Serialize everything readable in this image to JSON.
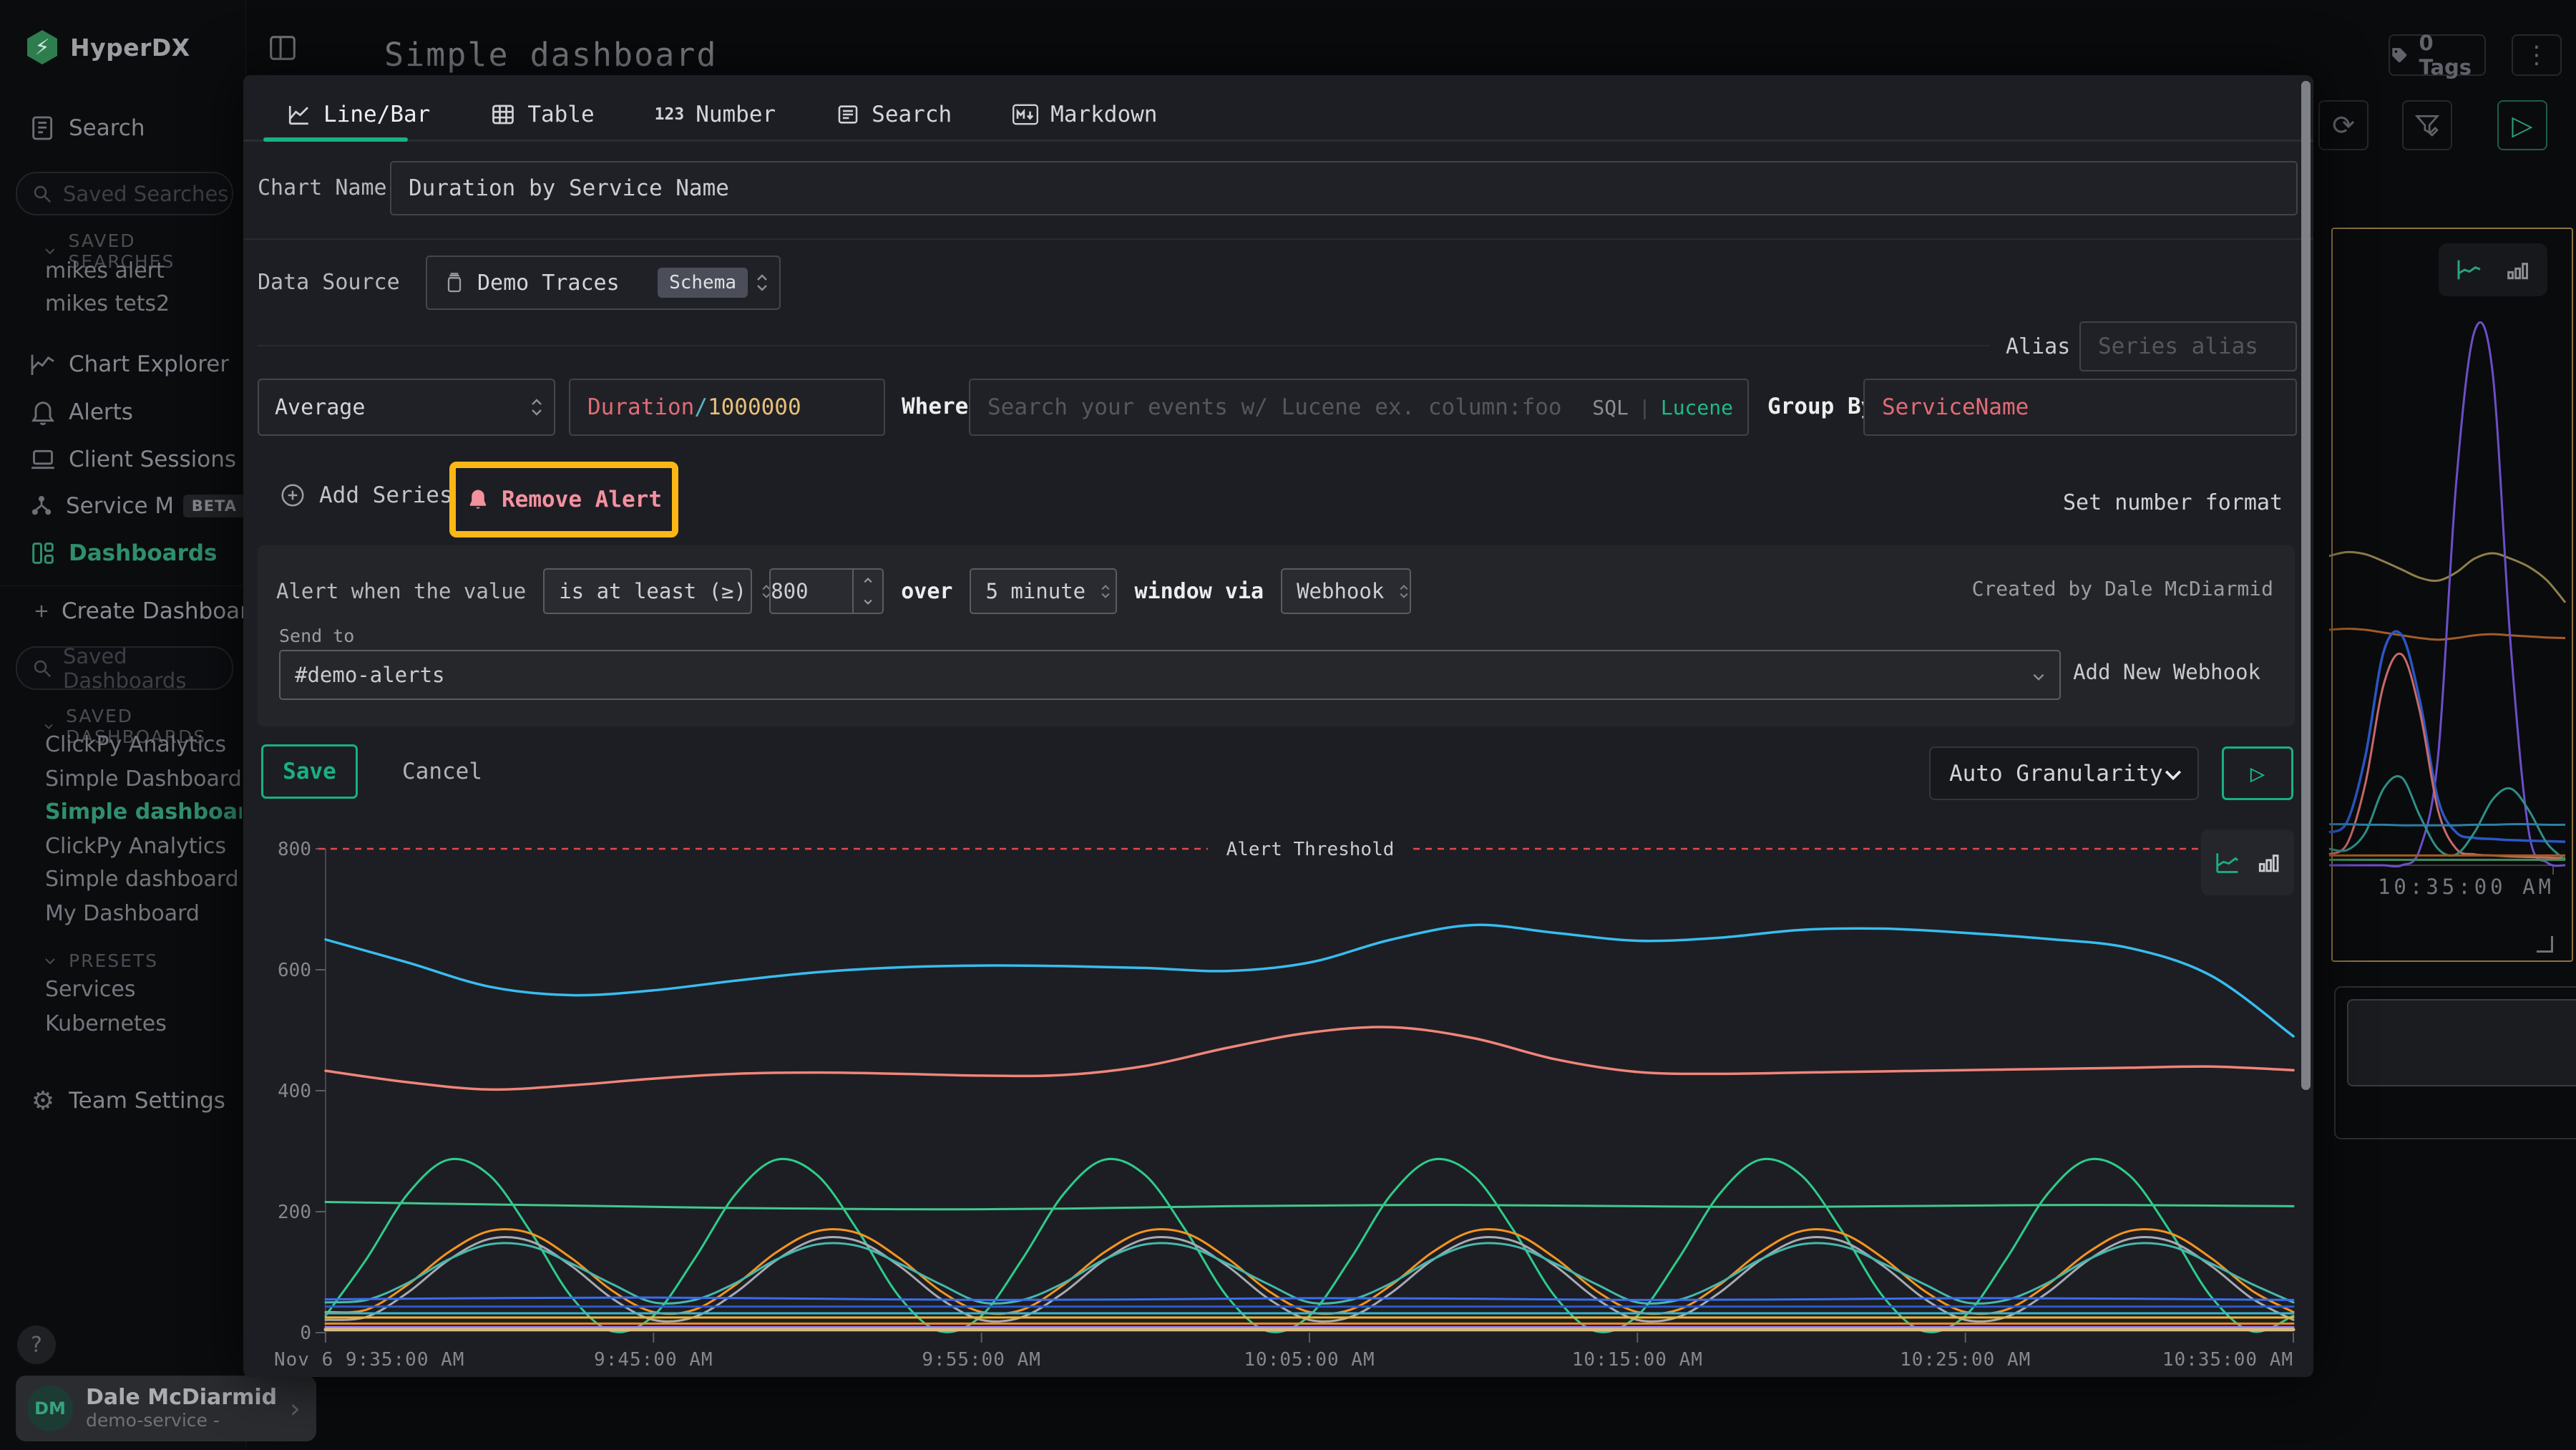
{
  "colors": {
    "accent_green": "#17b182",
    "alert_pink": "#f4919f",
    "threshold_red": "#e5484d",
    "annotation_yellow": "#fcb714",
    "code_field": "#e06c75",
    "code_operator": "#56b6c2",
    "code_number": "#e5c07b",
    "lucene_green": "#1fb987"
  },
  "header": {
    "title": "Simple dashboard",
    "tags": "0 Tags"
  },
  "sidebar": {
    "logo": "HyperDX",
    "search_label": "Search",
    "search_placeholder": "Saved Searches",
    "saved_searches_header": "SAVED SEARCHES",
    "saved_searches": [
      "mikes alert",
      "mikes tets2"
    ],
    "nav": [
      {
        "label": "Chart Explorer"
      },
      {
        "label": "Alerts"
      },
      {
        "label": "Client Sessions"
      },
      {
        "label": "Service Map",
        "badge": "BETA"
      },
      {
        "label": "Dashboards"
      }
    ],
    "create_dashboard": "Create Dashboard",
    "dash_search_placeholder": "Saved Dashboards",
    "saved_dashboards_header": "SAVED DASHBOARDS",
    "saved_dashboards": [
      {
        "label": "ClickPy Analytics"
      },
      {
        "label": "Simple Dashboard"
      },
      {
        "label": "Simple dashboard"
      },
      {
        "label": "ClickPy Analytics"
      },
      {
        "label": "Simple dashboard"
      },
      {
        "label": "My Dashboard"
      }
    ],
    "presets_header": "PRESETS",
    "presets": [
      "Services",
      "Kubernetes"
    ],
    "team_settings": "Team Settings"
  },
  "user": {
    "help": "?",
    "initials": "DM",
    "name": "Dale McDiarmid",
    "org": "demo-service -"
  },
  "modal": {
    "tabs": [
      {
        "label": "Line/Bar"
      },
      {
        "label": "Table"
      },
      {
        "label": "Number"
      },
      {
        "label": "Search"
      },
      {
        "label": "Markdown"
      }
    ],
    "number_icon": "123",
    "chart_name": {
      "label": "Chart Name",
      "value": "Duration by Service Name"
    },
    "data_source": {
      "label": "Data Source",
      "value": "Demo Traces",
      "badge": "Schema"
    },
    "alias": {
      "label": "Alias",
      "placeholder": "Series alias"
    },
    "series_editor": {
      "aggregation": "Average",
      "field_parts": [
        {
          "text": "Duration"
        },
        {
          "text": "/"
        },
        {
          "text": "1000000"
        }
      ],
      "where_label": "Where",
      "where_placeholder": "Search your events w/ Lucene ex. column:foo",
      "sql_label": "SQL",
      "sep": "|",
      "lucene_label": "Lucene",
      "group_by_label": "Group By",
      "group_by_value": "ServiceName"
    },
    "actions": {
      "add_series": "Add Series",
      "remove_alert": "Remove Alert",
      "set_number_format": "Set number format"
    },
    "alert": {
      "prefix": "Alert when the value",
      "condition": "is at least (≥)",
      "threshold": "800",
      "over": "over",
      "window": "5 minute",
      "via": "window via",
      "channel": "Webhook",
      "created_by": "Created by Dale McDiarmid",
      "send_to_label": "Send to",
      "send_to_value": "#demo-alerts",
      "add_webhook": "Add New Webhook"
    },
    "footer": {
      "save": "Save",
      "cancel": "Cancel",
      "granularity": "Auto Granularity"
    }
  },
  "chart_data": [
    {
      "type": "line",
      "title": "Duration by Service Name",
      "x_ticks": [
        "Nov 6 9:35:00 AM",
        "9:45:00 AM",
        "9:55:00 AM",
        "10:05:00 AM",
        "10:15:00 AM",
        "10:25:00 AM",
        "10:35:00 AM"
      ],
      "x_tick_minutes": [
        0,
        10,
        20,
        30,
        40,
        50,
        60
      ],
      "x_range_minutes": [
        0,
        60
      ],
      "ylim": [
        0,
        800
      ],
      "y_ticks": [
        0,
        200,
        400,
        600,
        800
      ],
      "grid": false,
      "legend": false,
      "threshold": {
        "value": 800,
        "label": "Alert Threshold",
        "color": "#e5484d"
      },
      "series": [
        {
          "id": "line-cyan",
          "color": "#38bdf0",
          "width": 3.5,
          "step": 2.5,
          "values": [
            650,
            612,
            572,
            558,
            566,
            582,
            596,
            604,
            607,
            606,
            603,
            598,
            612,
            650,
            674,
            661,
            648,
            653,
            666,
            668,
            661,
            651,
            636,
            590,
            490
          ]
        },
        {
          "id": "line-salmon",
          "color": "#f0857a",
          "width": 3.5,
          "step": 2.5,
          "values": [
            433,
            414,
            402,
            409,
            420,
            428,
            430,
            428,
            425,
            426,
            441,
            471,
            496,
            505,
            487,
            452,
            431,
            428,
            430,
            432,
            434,
            436,
            438,
            440,
            434
          ]
        },
        {
          "id": "line-mint",
          "color": "#41c98e",
          "width": 3,
          "step": 2.5,
          "values": [
            216,
            214,
            212,
            210,
            208,
            206,
            205,
            204,
            204,
            205,
            207,
            209,
            210,
            211,
            211,
            210,
            209,
            208,
            208,
            209,
            210,
            211,
            211,
            210,
            209
          ]
        },
        {
          "id": "line-green-wave",
          "color": "#2ecc8b",
          "width": 3,
          "step": 1.25,
          "values": [
            28,
            122,
            229,
            286,
            260,
            167,
            59,
            2,
            28,
            122,
            229,
            286,
            260,
            167,
            59,
            2,
            28,
            122,
            229,
            286,
            260,
            167,
            59,
            2,
            28,
            122,
            229,
            286,
            260,
            167,
            59,
            2,
            28,
            122,
            229,
            286,
            260,
            167,
            59,
            2,
            28,
            122,
            229,
            286,
            260,
            167,
            59,
            2,
            28
          ]
        },
        {
          "id": "line-orange-wave",
          "color": "#f5941f",
          "width": 3,
          "step": 1.25,
          "values": [
            34,
            38,
            79,
            133,
            168,
            164,
            123,
            69,
            34,
            38,
            79,
            133,
            168,
            164,
            123,
            69,
            34,
            38,
            79,
            133,
            168,
            164,
            123,
            69,
            34,
            38,
            79,
            133,
            168,
            164,
            123,
            69,
            34,
            38,
            79,
            133,
            168,
            164,
            123,
            69,
            34,
            38,
            79,
            133,
            168,
            164,
            123,
            69,
            34
          ]
        },
        {
          "id": "line-gray-wave",
          "color": "#a6abb3",
          "width": 3,
          "step": 1.25,
          "values": [
            21,
            26,
            66,
            120,
            155,
            151,
            110,
            56,
            21,
            26,
            66,
            120,
            155,
            151,
            110,
            56,
            21,
            26,
            66,
            120,
            155,
            151,
            110,
            56,
            21,
            26,
            66,
            120,
            155,
            151,
            110,
            56,
            21,
            26,
            66,
            120,
            155,
            151,
            110,
            56,
            21,
            26,
            66,
            120,
            155,
            151,
            110,
            56,
            21
          ]
        },
        {
          "id": "line-teal-wave",
          "color": "#46b8ab",
          "width": 3,
          "step": 1.25,
          "values": [
            50,
            54,
            82,
            121,
            146,
            143,
            114,
            80,
            50,
            54,
            82,
            121,
            146,
            143,
            114,
            80,
            50,
            54,
            82,
            121,
            146,
            143,
            114,
            80,
            50,
            54,
            82,
            121,
            146,
            143,
            114,
            80,
            50,
            54,
            82,
            121,
            146,
            143,
            114,
            80,
            50,
            54,
            82,
            121,
            146,
            143,
            114,
            80,
            50
          ]
        },
        {
          "id": "line-blue",
          "color": "#3a6df0",
          "width": 3,
          "step": 5,
          "values": [
            55,
            57,
            58,
            56,
            54,
            55,
            57,
            56,
            54,
            55,
            57,
            56,
            54
          ]
        },
        {
          "id": "line-blue2",
          "color": "#2d59c8",
          "width": 3,
          "step": 5,
          "values": [
            43,
            43,
            43,
            43,
            43,
            43,
            43,
            43,
            43,
            43,
            43,
            43,
            43
          ]
        },
        {
          "id": "line-sky",
          "color": "#38b6d6",
          "width": 3,
          "step": 5,
          "values": [
            32,
            32,
            32,
            32,
            32,
            32,
            32,
            32,
            32,
            32,
            32,
            32,
            32
          ]
        },
        {
          "id": "line-yellow",
          "color": "#f2b32a",
          "width": 3,
          "step": 5,
          "values": [
            25,
            25,
            25,
            25,
            25,
            25,
            25,
            25,
            25,
            25,
            25,
            25,
            25
          ]
        },
        {
          "id": "line-orange2",
          "color": "#ef8b1f",
          "width": 3,
          "step": 5,
          "values": [
            15,
            15,
            15,
            15,
            15,
            15,
            15,
            15,
            15,
            15,
            15,
            15,
            15
          ]
        },
        {
          "id": "line-purple",
          "color": "#9d7bf5",
          "width": 3,
          "step": 5,
          "values": [
            9,
            9,
            9,
            9,
            9,
            9,
            9,
            9,
            9,
            9,
            9,
            9,
            9
          ]
        },
        {
          "id": "line-tan",
          "color": "#d8ba82",
          "width": 5,
          "step": 5,
          "values": [
            5,
            5,
            5,
            5,
            5,
            5,
            5,
            5,
            5,
            5,
            5,
            5,
            5
          ]
        }
      ]
    },
    {
      "type": "line",
      "x_label": "10:35:00 AM",
      "x_range_minutes": [
        47,
        60
      ],
      "ylim": [
        0,
        1000
      ],
      "series": [
        {
          "id": "bg-khaki",
          "color": "#8f7f4a",
          "width": 3,
          "step": 1,
          "values": [
            565,
            572,
            568,
            555,
            540,
            525,
            520,
            535,
            560,
            570,
            560,
            545,
            520,
            480
          ]
        },
        {
          "id": "bg-orange",
          "color": "#a35c28",
          "width": 3,
          "step": 1,
          "values": [
            430,
            432,
            430,
            425,
            420,
            415,
            412,
            415,
            420,
            422,
            420,
            418,
            416,
            415
          ]
        },
        {
          "id": "bg-purple",
          "color": "#6b4fc8",
          "width": 3,
          "step": 1,
          "values": [
            0,
            0,
            0,
            0,
            0,
            30,
            200,
            700,
            975,
            900,
            400,
            60,
            5,
            0
          ]
        },
        {
          "id": "bg-blue",
          "color": "#2b57c4",
          "width": 3.5,
          "step": 1,
          "values": [
            60,
            80,
            200,
            390,
            420,
            300,
            120,
            60,
            50,
            48,
            46,
            45,
            44,
            43
          ]
        },
        {
          "id": "bg-rose",
          "color": "#c86a6a",
          "width": 3,
          "step": 1,
          "values": [
            20,
            40,
            150,
            330,
            385,
            280,
            100,
            30,
            20,
            18,
            16,
            15,
            14,
            13
          ]
        },
        {
          "id": "bg-teal",
          "color": "#2f8f85",
          "width": 3,
          "step": 1,
          "values": [
            30,
            28,
            60,
            140,
            160,
            90,
            30,
            20,
            60,
            120,
            140,
            100,
            40,
            10
          ]
        },
        {
          "id": "bg-sky",
          "color": "#2b7fa8",
          "width": 3,
          "step": 1,
          "values": [
            75,
            75,
            74,
            74,
            73,
            73,
            73,
            73,
            74,
            74,
            75,
            75,
            74,
            74
          ]
        },
        {
          "id": "bg-amber",
          "color": "#a85c20",
          "width": 3,
          "step": 1,
          "values": [
            18,
            18,
            18,
            18,
            18,
            18,
            18,
            18,
            18,
            18,
            18,
            18,
            18,
            18
          ]
        },
        {
          "id": "bg-green",
          "color": "#3f8f5f",
          "width": 3,
          "step": 1,
          "values": [
            10,
            10,
            10,
            10,
            10,
            10,
            10,
            10,
            10,
            10,
            10,
            10,
            10,
            10
          ]
        }
      ]
    }
  ]
}
